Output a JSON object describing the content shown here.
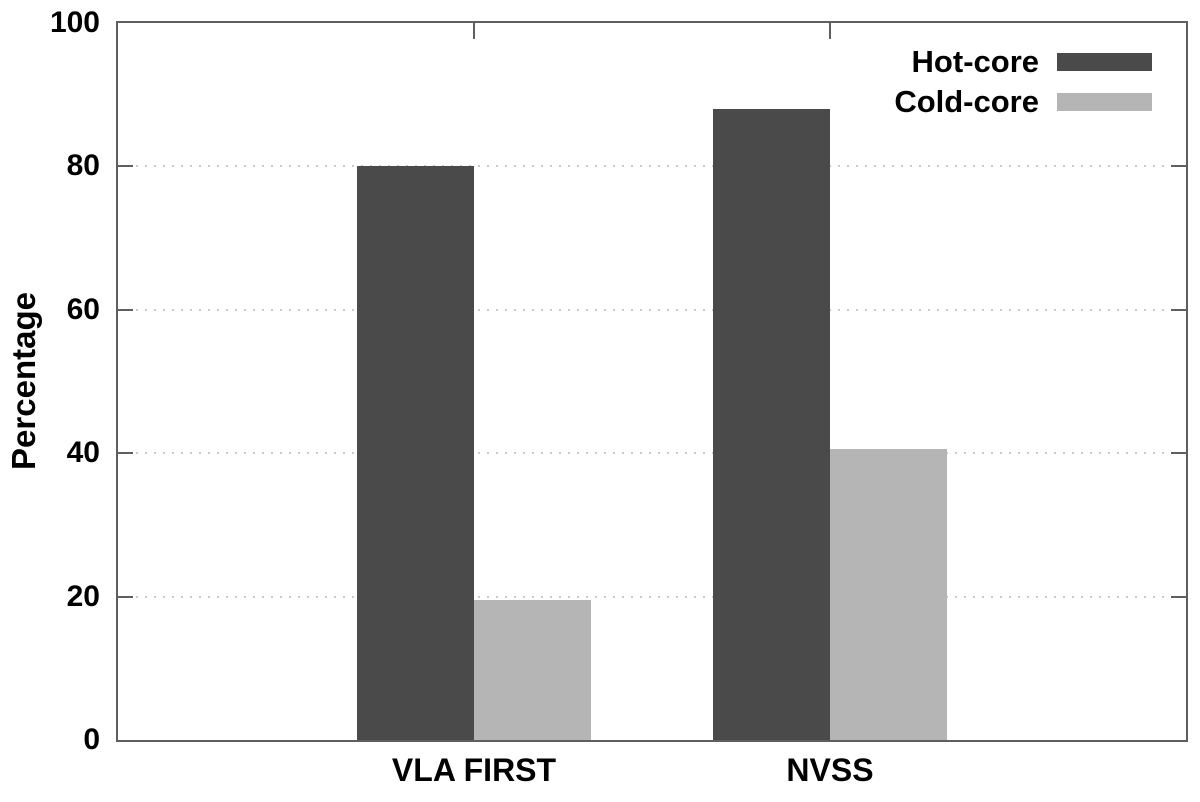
{
  "chart_data": {
    "type": "bar",
    "title": "",
    "xlabel": "",
    "ylabel": "Percentage",
    "categories": [
      "VLA FIRST",
      "NVSS"
    ],
    "series": [
      {
        "name": "Hot-core",
        "color": "#4a4a4a",
        "values": [
          80,
          88
        ]
      },
      {
        "name": "Cold-core",
        "color": "#b5b5b5",
        "values": [
          19.5,
          40.6
        ]
      }
    ],
    "ylim": [
      0,
      100
    ],
    "yticks": [
      0,
      20,
      40,
      60,
      80,
      100
    ],
    "grid": {
      "horizontal": true,
      "style": "dotted",
      "color": "#c9c9c9"
    },
    "legend": {
      "position": "top-right"
    },
    "frame_color": "#5f5f5f",
    "background": "#ffffff"
  }
}
